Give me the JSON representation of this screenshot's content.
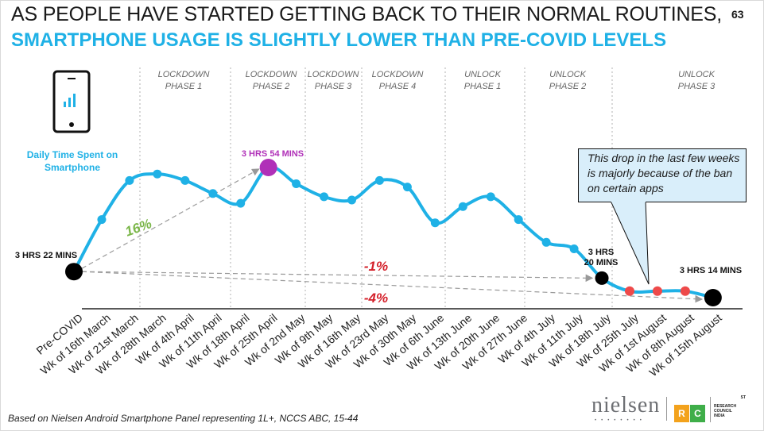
{
  "title_line1": "AS PEOPLE HAVE STARTED GETTING BACK TO THEIR NORMAL ROUTINES,",
  "title_line2": "SMARTPHONE USAGE IS  SLIGHTLY  LOWER THAN PRE-COVID LEVELS",
  "page_number": "63",
  "footnote": "Based on Nielsen Android Smartphone Panel representing 1L+, NCCS ABC, 15-44",
  "metric_label": [
    "Daily Time Spent on",
    "Smartphone"
  ],
  "callout_text": "This drop in the last few weeks is majorly because of the ban on certain apps",
  "logos": {
    "nielsen": "nielsen",
    "rc": [
      "R",
      "C"
    ],
    "rc_text": [
      "ST",
      "RESEARCH",
      "COUNCIL",
      "INDIA"
    ]
  },
  "colors": {
    "line": "#1fb1e6",
    "peak": "#b030b8",
    "endpoint": "#000000",
    "recent": "#ee4a4a",
    "green": "#7ab648",
    "red": "#d4202a",
    "grid": "#b0b0b0"
  },
  "chart_data": {
    "type": "line",
    "categories": [
      "Pre-COVID",
      "Wk of 16th March",
      "Wk of 21st March",
      "Wk of 28th March",
      "Wk of 4th April",
      "Wk of 11th April",
      "Wk of 18th April",
      "Wk of 25th April",
      "Wk of 2nd May",
      "Wk of 9th May",
      "Wk of 16th May",
      "Wk of 23rd May",
      "Wk of 30th May",
      "Wk of 6th June",
      "Wk of 13th June",
      "Wk of 20th June",
      "Wk of 27th June",
      "Wk of 4th July",
      "Wk of 11th July",
      "Wk of 18th July",
      "Wk of 25th July",
      "Wk of 1st August",
      "Wk of 8th August",
      "Wk of 15th August"
    ],
    "values_minutes": [
      202,
      218,
      230,
      232,
      230,
      226,
      223,
      234,
      229,
      225,
      224,
      230,
      228,
      217,
      222,
      225,
      218,
      211,
      209,
      200,
      196,
      196,
      196,
      194
    ],
    "value_labels": [
      {
        "index": 0,
        "text": "3 HRS 22 MINS"
      },
      {
        "index": 7,
        "text": "3 HRS 54 MINS"
      },
      {
        "index": 19,
        "text": [
          "3 HRS",
          "20 MINS"
        ]
      },
      {
        "index": 23,
        "text": "3 HRS 14 MINS"
      }
    ],
    "phases": [
      {
        "label": [
          "LOCKDOWN",
          "PHASE 1"
        ]
      },
      {
        "label": [
          "LOCKDOWN",
          "PHASE 2"
        ]
      },
      {
        "label": [
          "LOCKDOWN",
          "PHASE 3"
        ]
      },
      {
        "label": [
          "LOCKDOWN",
          "PHASE 4"
        ]
      },
      {
        "label": [
          "UNLOCK",
          "PHASE 1"
        ]
      },
      {
        "label": [
          "UNLOCK",
          "PHASE 2"
        ]
      },
      {
        "label": [
          "UNLOCK",
          "PHASE 3"
        ]
      }
    ],
    "annotations": [
      {
        "text": "16%",
        "from": 0,
        "to": 7
      },
      {
        "text": "-1%",
        "from": 0,
        "to": 19
      },
      {
        "text": "-4%",
        "from": 0,
        "to": 23
      }
    ]
  }
}
